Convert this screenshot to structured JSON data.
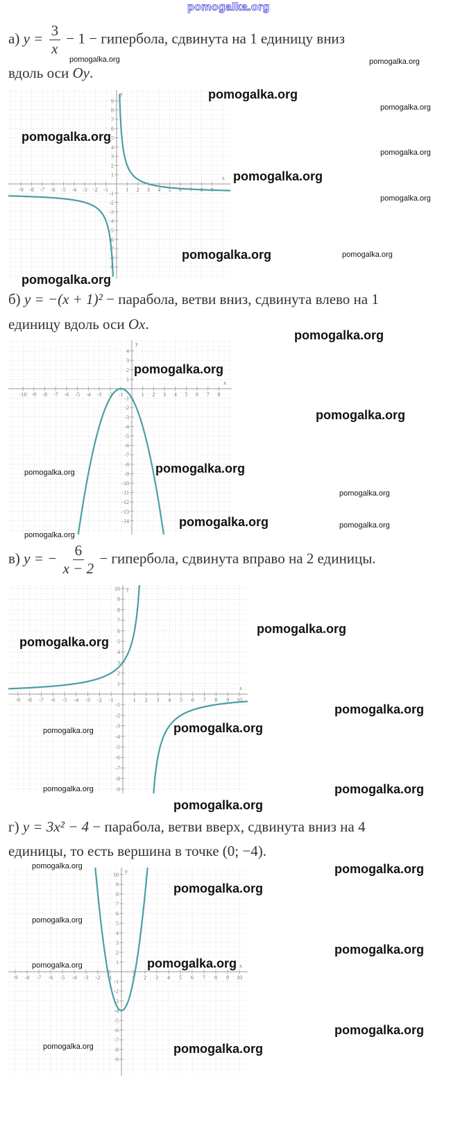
{
  "site_watermark": "pomogalka.org",
  "items": [
    {
      "label": "а)",
      "lhs": "y =",
      "num": "3",
      "den": "x",
      "rest": "− 1",
      "text1": "− гипербола,   сдвинута на 1 единицу вниз",
      "text2": "вдоль оси ",
      "text2_math": "Oy",
      "text2_end": "."
    },
    {
      "label": "б)",
      "lhs": "y = −(x + 1)²",
      "text1": "− парабола, ветви вниз, сдвинута влево на 1",
      "text2": "единицу вдоль оси ",
      "text2_math": "Ox",
      "text2_end": "."
    },
    {
      "label": "в)",
      "lhs": "y = −",
      "num": "6",
      "den": "x − 2",
      "text1": "− гипербола, сдвинута вправо на 2 единицы."
    },
    {
      "label": "г)",
      "lhs": "y = 3x² − 4",
      "text1": "− парабола, ветви вверх, сдвинута вниз на 4",
      "text2": "единицы, то есть вершина в точке (0; −4)."
    }
  ],
  "watermarks": [
    "pomogalka.org"
  ],
  "chart_data": [
    {
      "type": "line",
      "formula": "3/x - 1",
      "xlabel": "x",
      "ylabel": "y",
      "xlim": [
        -10,
        10
      ],
      "ylim": [
        -10,
        10
      ],
      "xticks": [
        -9,
        -8,
        -7,
        -6,
        -5,
        -4,
        -3,
        -2,
        -1,
        1,
        2,
        3,
        4,
        5,
        6,
        7,
        8,
        9
      ],
      "yticks": [
        -9,
        -8,
        -7,
        -6,
        -5,
        -4,
        -3,
        -2,
        -1,
        1,
        2,
        3,
        4,
        5,
        6,
        7,
        8,
        9
      ],
      "grid": true,
      "color": "#4a9ea6"
    },
    {
      "type": "line",
      "formula": "-(x+1)^2",
      "xlabel": "x",
      "ylabel": "y",
      "xlim": [
        -11,
        9
      ],
      "ylim": [
        -15,
        5
      ],
      "xticks": [
        -10,
        -9,
        -8,
        -7,
        -6,
        -5,
        -4,
        -3,
        -2,
        -1,
        1,
        2,
        3,
        4,
        5,
        6,
        7,
        8
      ],
      "yticks": [
        -14,
        -13,
        -12,
        -11,
        -10,
        -9,
        -8,
        -7,
        -6,
        -5,
        -4,
        -3,
        -2,
        -1,
        1,
        2,
        3,
        4
      ],
      "grid": true,
      "color": "#4a9ea6"
    },
    {
      "type": "line",
      "formula": "-6/(x-2)",
      "xlabel": "x",
      "ylabel": "y",
      "xlim": [
        -10,
        11
      ],
      "ylim": [
        -10,
        11
      ],
      "xticks": [
        -9,
        -8,
        -7,
        -6,
        -5,
        -4,
        -3,
        -2,
        -1,
        1,
        2,
        3,
        4,
        5,
        6,
        7,
        8,
        9,
        10
      ],
      "yticks": [
        -9,
        -8,
        -7,
        -6,
        -5,
        -4,
        -3,
        -2,
        -1,
        1,
        2,
        3,
        4,
        5,
        6,
        7,
        8,
        9,
        10
      ],
      "grid": true,
      "color": "#4a9ea6"
    },
    {
      "type": "line",
      "formula": "3x^2 - 4",
      "xlabel": "x",
      "ylabel": "y",
      "xlim": [
        -10,
        11
      ],
      "ylim": [
        -10,
        11
      ],
      "xticks": [
        -9,
        -8,
        -7,
        -6,
        -5,
        -4,
        -3,
        -2,
        -1,
        1,
        2,
        3,
        4,
        5,
        6,
        7,
        8,
        9,
        10
      ],
      "yticks": [
        -9,
        -8,
        -7,
        -6,
        -5,
        -4,
        -3,
        -2,
        -1,
        1,
        2,
        3,
        4,
        5,
        6,
        7,
        8,
        9,
        10
      ],
      "grid": true,
      "color": "#4a9ea6"
    }
  ]
}
